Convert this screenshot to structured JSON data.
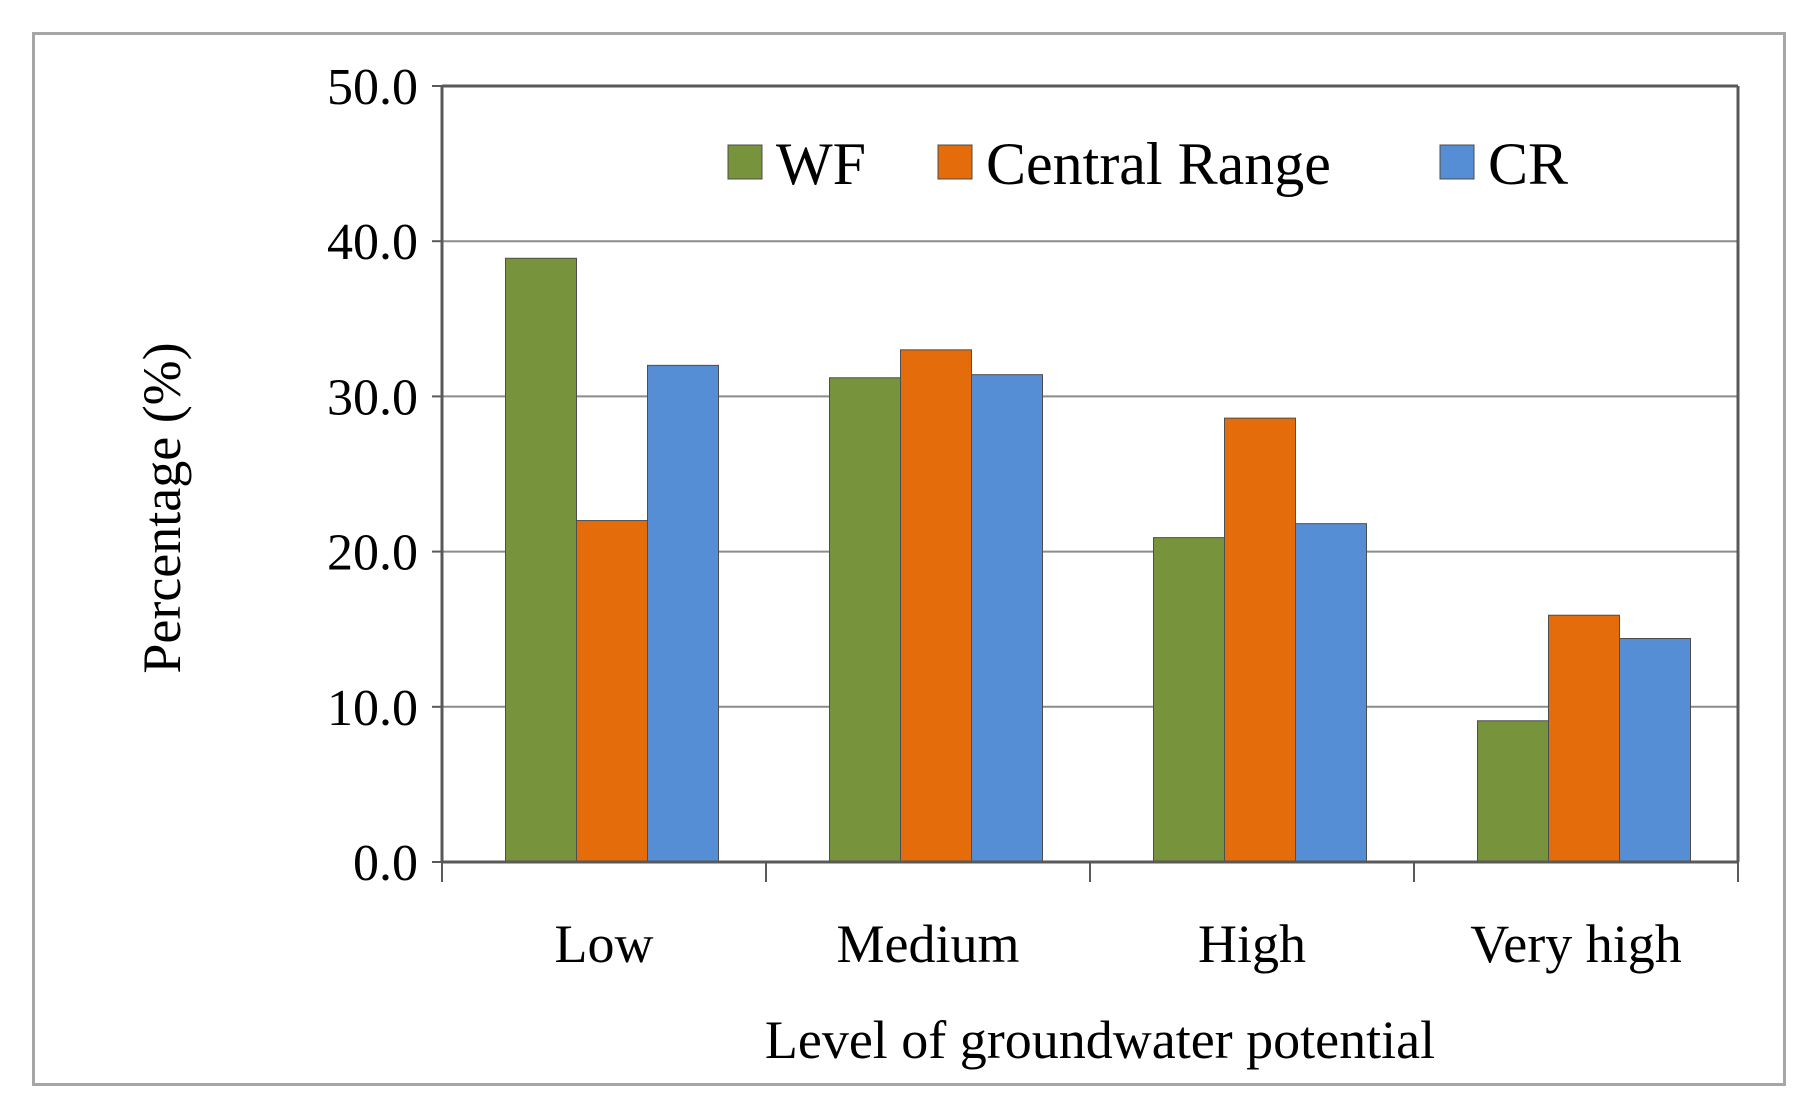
{
  "chart_data": {
    "type": "bar",
    "title": "",
    "xlabel": "Level of groundwater potential",
    "ylabel": "Percentage (%)",
    "ylim": [
      0,
      50
    ],
    "yticks": [
      "0.0",
      "10.0",
      "20.0",
      "30.0",
      "40.0",
      "50.0"
    ],
    "categories": [
      "Low",
      "Medium",
      "High",
      "Very high"
    ],
    "series": [
      {
        "name": "WF",
        "color": "#77933c",
        "values": [
          38.9,
          31.2,
          20.9,
          9.1
        ]
      },
      {
        "name": "Central Range",
        "color": "#e46c0a",
        "values": [
          22.0,
          33.0,
          28.6,
          15.9
        ]
      },
      {
        "name": "CR",
        "color": "#558ed5",
        "values": [
          32.0,
          31.4,
          21.8,
          14.4
        ]
      }
    ],
    "grid": true,
    "legend_position": "top-right"
  }
}
